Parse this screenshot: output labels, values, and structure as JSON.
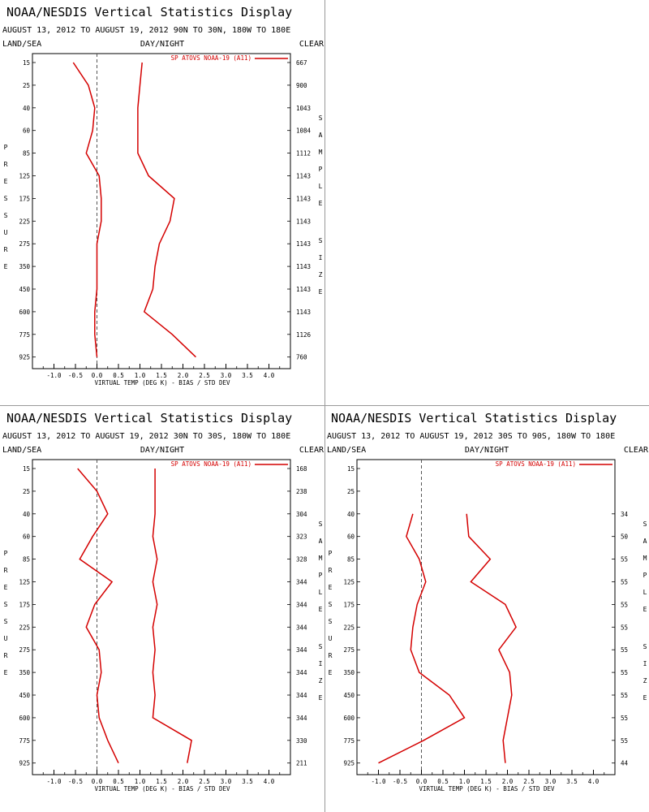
{
  "chart_data": [
    {
      "type": "line",
      "title": "NOAA/NESDIS Vertical Statistics Display",
      "subtitle": "AUGUST 13, 2012 TO AUGUST 19, 2012  90N TO 30N, 180W TO 180E",
      "label_left": "LAND/SEA",
      "label_center": "DAY/NIGHT",
      "label_right": "CLEAR",
      "xlabel": "VIRTUAL TEMP (DEG K) - BIAS / STD DEV",
      "ylabel": "PRESSURE",
      "y2label": "SAMPLE SIZE",
      "legend": "SP ATOVS NOAA-19 (A11)",
      "legend_position": "top-right",
      "color": "#d40000",
      "xlim": [
        -1.5,
        4.5
      ],
      "xticks": [
        "-1.0",
        "-0.5",
        "0.0",
        "0.5",
        "1.0",
        "1.5",
        "2.0",
        "2.5",
        "3.0",
        "3.5",
        "4.0"
      ],
      "pressure_levels": [
        "15",
        "25",
        "40",
        "60",
        "85",
        "125",
        "175",
        "225",
        "275",
        "350",
        "450",
        "600",
        "775",
        "925"
      ],
      "sample_size": [
        "667",
        "900",
        "1043",
        "1084",
        "1112",
        "1143",
        "1143",
        "1143",
        "1143",
        "1143",
        "1143",
        "1143",
        "1126",
        "760"
      ],
      "series": [
        {
          "values": [
            -0.55,
            -0.2,
            -0.05,
            -0.1,
            -0.25,
            0.05,
            0.1,
            0.1,
            0.0,
            0.0,
            0.0,
            -0.05,
            -0.05,
            0.0
          ]
        },
        {
          "values": [
            1.05,
            1.0,
            0.95,
            0.95,
            0.95,
            1.2,
            1.8,
            1.7,
            1.45,
            1.35,
            1.3,
            1.1,
            1.75,
            2.3
          ]
        }
      ]
    },
    {
      "type": "line",
      "title": "NOAA/NESDIS Vertical Statistics Display",
      "subtitle": "AUGUST 13, 2012 TO AUGUST 19, 2012  30N TO 30S, 180W TO 180E",
      "label_left": "LAND/SEA",
      "label_center": "DAY/NIGHT",
      "label_right": "CLEAR",
      "xlabel": "VIRTUAL TEMP (DEG K) - BIAS / STD DEV",
      "ylabel": "PRESSURE",
      "y2label": "SAMPLE SIZE",
      "legend": "SP ATOVS NOAA-19 (A11)",
      "legend_position": "top-right",
      "color": "#d40000",
      "xlim": [
        -1.5,
        4.5
      ],
      "xticks": [
        "-1.0",
        "-0.5",
        "0.0",
        "0.5",
        "1.0",
        "1.5",
        "2.0",
        "2.5",
        "3.0",
        "3.5",
        "4.0"
      ],
      "pressure_levels": [
        "15",
        "25",
        "40",
        "60",
        "85",
        "125",
        "175",
        "225",
        "275",
        "350",
        "450",
        "600",
        "775",
        "925"
      ],
      "sample_size": [
        "168",
        "238",
        "304",
        "323",
        "328",
        "344",
        "344",
        "344",
        "344",
        "344",
        "344",
        "344",
        "330",
        "211"
      ],
      "series": [
        {
          "values": [
            -0.45,
            0.0,
            0.25,
            -0.1,
            -0.4,
            0.35,
            -0.05,
            -0.25,
            0.05,
            0.1,
            0.0,
            0.05,
            0.25,
            0.5
          ]
        },
        {
          "values": [
            1.35,
            1.35,
            1.35,
            1.3,
            1.4,
            1.3,
            1.4,
            1.3,
            1.35,
            1.3,
            1.35,
            1.3,
            2.2,
            2.1
          ]
        }
      ]
    },
    {
      "type": "line",
      "title": "NOAA/NESDIS Vertical Statistics Display",
      "subtitle": "AUGUST 13, 2012 TO AUGUST 19, 2012  30S TO 90S, 180W TO 180E",
      "label_left": "LAND/SEA",
      "label_center": "DAY/NIGHT",
      "label_right": "CLEAR",
      "xlabel": "VIRTUAL TEMP (DEG K) - BIAS / STD DEV",
      "ylabel": "PRESSURE",
      "y2label": "SAMPLE SIZE",
      "legend": "SP ATOVS NOAA-19 (A11)",
      "legend_position": "top-right",
      "color": "#d40000",
      "xlim": [
        -1.5,
        4.5
      ],
      "xticks": [
        "-1.0",
        "-0.5",
        "0.0",
        "0.5",
        "1.0",
        "1.5",
        "2.0",
        "2.5",
        "3.0",
        "3.5",
        "4.0"
      ],
      "pressure_levels": [
        "15",
        "25",
        "40",
        "60",
        "85",
        "125",
        "175",
        "225",
        "275",
        "350",
        "450",
        "600",
        "775",
        "925"
      ],
      "sample_size": [
        "",
        "",
        "34",
        "50",
        "55",
        "55",
        "55",
        "55",
        "55",
        "55",
        "55",
        "55",
        "55",
        "44"
      ],
      "series": [
        {
          "values": [
            null,
            null,
            -0.2,
            -0.35,
            -0.05,
            0.1,
            -0.1,
            -0.2,
            -0.25,
            -0.05,
            0.65,
            1.0,
            0.05,
            -1.0
          ]
        },
        {
          "values": [
            null,
            null,
            1.05,
            1.1,
            1.6,
            1.15,
            1.95,
            2.2,
            1.8,
            2.05,
            2.1,
            2.0,
            1.9,
            1.95
          ]
        }
      ]
    }
  ]
}
